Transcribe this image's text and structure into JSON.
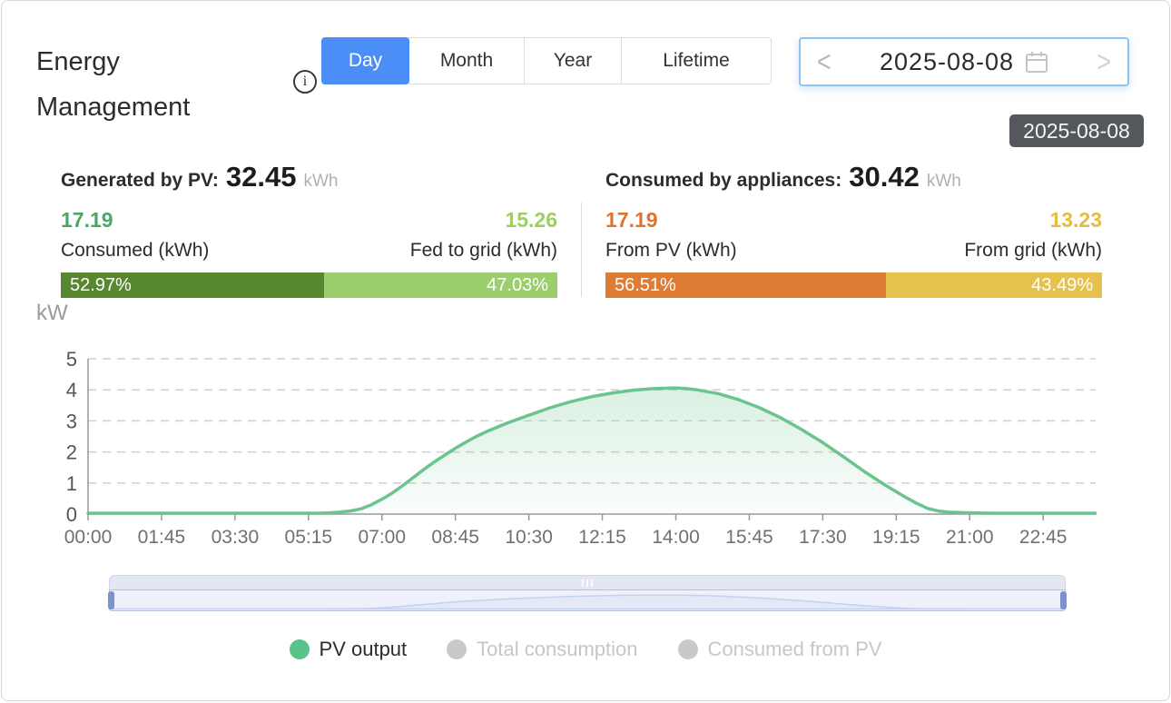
{
  "header": {
    "title": "Energy Management",
    "info_icon_glyph": "i",
    "tabs": [
      {
        "label": "Day",
        "active": true
      },
      {
        "label": "Month",
        "active": false
      },
      {
        "label": "Year",
        "active": false
      },
      {
        "label": "Lifetime",
        "active": false
      }
    ],
    "tab_active_color": "#4c8ef8",
    "date_picker": {
      "prev_glyph": "<",
      "value": "2025-08-08",
      "next_glyph": ">"
    },
    "tooltip": "2025-08-08"
  },
  "stats": {
    "generation": {
      "heading": "Generated by PV:",
      "total": "32.45",
      "unit": "kWh",
      "left": {
        "value": "17.19",
        "label": "Consumed (kWh)",
        "pct_label": "52.97%",
        "pct": 52.97,
        "value_color": "#4aa766",
        "bar_color": "#57882f"
      },
      "right": {
        "value": "15.26",
        "label": "Fed to grid (kWh)",
        "pct_label": "47.03%",
        "pct": 47.03,
        "value_color": "#9ccf63",
        "bar_color": "#9cce6e"
      }
    },
    "consumption": {
      "heading": "Consumed by appliances:",
      "total": "30.42",
      "unit": "kWh",
      "left": {
        "value": "17.19",
        "label": "From PV (kWh)",
        "pct_label": "56.51%",
        "pct": 56.51,
        "value_color": "#dc7430",
        "bar_color": "#de7b35"
      },
      "right": {
        "value": "13.23",
        "label": "From grid (kWh)",
        "pct_label": "43.49%",
        "pct": 43.49,
        "value_color": "#e4bb44",
        "bar_color": "#e6c14e"
      }
    }
  },
  "chart_data": {
    "type": "area",
    "title": "",
    "ylabel": "kW",
    "ylim": [
      0,
      5
    ],
    "y_ticks": [
      0,
      1,
      2,
      3,
      4,
      5
    ],
    "x_tick_labels": [
      "00:00",
      "01:45",
      "03:30",
      "05:15",
      "07:00",
      "08:45",
      "10:30",
      "12:15",
      "14:00",
      "15:45",
      "17:30",
      "19:15",
      "21:00",
      "22:45"
    ],
    "x_tick_interval_hours": 1.75,
    "x_range_hours": [
      0,
      24
    ],
    "grid": "dashed",
    "legend_position": "bottom",
    "series": [
      {
        "name": "PV output",
        "unit": "kW",
        "color": "#6bc48e",
        "visible": true,
        "points": [
          [
            0,
            0.03
          ],
          [
            0.5,
            0.03
          ],
          [
            1,
            0.03
          ],
          [
            1.5,
            0.03
          ],
          [
            2,
            0.03
          ],
          [
            2.5,
            0.03
          ],
          [
            3,
            0.03
          ],
          [
            3.5,
            0.03
          ],
          [
            4,
            0.03
          ],
          [
            4.5,
            0.03
          ],
          [
            5,
            0.03
          ],
          [
            5.5,
            0.03
          ],
          [
            5.75,
            0.04
          ],
          [
            6,
            0.06
          ],
          [
            6.25,
            0.1
          ],
          [
            6.5,
            0.17
          ],
          [
            6.75,
            0.3
          ],
          [
            7,
            0.48
          ],
          [
            7.25,
            0.68
          ],
          [
            7.5,
            0.92
          ],
          [
            7.75,
            1.18
          ],
          [
            8,
            1.44
          ],
          [
            8.25,
            1.68
          ],
          [
            8.5,
            1.9
          ],
          [
            8.75,
            2.12
          ],
          [
            9,
            2.32
          ],
          [
            9.25,
            2.5
          ],
          [
            9.5,
            2.66
          ],
          [
            9.75,
            2.8
          ],
          [
            10,
            2.94
          ],
          [
            10.25,
            3.06
          ],
          [
            10.5,
            3.18
          ],
          [
            11,
            3.42
          ],
          [
            11.5,
            3.62
          ],
          [
            12,
            3.78
          ],
          [
            12.5,
            3.9
          ],
          [
            13,
            3.99
          ],
          [
            13.5,
            4.04
          ],
          [
            14,
            4.06
          ],
          [
            14.25,
            4.04
          ],
          [
            14.5,
            4.0
          ],
          [
            15,
            3.88
          ],
          [
            15.5,
            3.68
          ],
          [
            16,
            3.42
          ],
          [
            16.5,
            3.1
          ],
          [
            17,
            2.72
          ],
          [
            17.5,
            2.3
          ],
          [
            18,
            1.84
          ],
          [
            18.5,
            1.36
          ],
          [
            19,
            0.92
          ],
          [
            19.25,
            0.72
          ],
          [
            19.5,
            0.52
          ],
          [
            19.75,
            0.34
          ],
          [
            20,
            0.18
          ],
          [
            20.25,
            0.1
          ],
          [
            20.5,
            0.06
          ],
          [
            21,
            0.04
          ],
          [
            21.5,
            0.03
          ],
          [
            22,
            0.03
          ],
          [
            22.5,
            0.03
          ],
          [
            23,
            0.03
          ],
          [
            23.5,
            0.03
          ],
          [
            23.99,
            0.03
          ]
        ]
      },
      {
        "name": "Total consumption",
        "visible": false
      },
      {
        "name": "Consumed from PV",
        "visible": false
      }
    ],
    "legend": [
      {
        "label": "PV output",
        "color": "#57c388",
        "active": true,
        "text_color": "#2c2c2c"
      },
      {
        "label": "Total consumption",
        "color": "#c9c9c9",
        "active": false,
        "text_color": "#c7c7c7"
      },
      {
        "label": "Consumed from PV",
        "color": "#c9c9c9",
        "active": false,
        "text_color": "#c7c7c7"
      }
    ]
  }
}
